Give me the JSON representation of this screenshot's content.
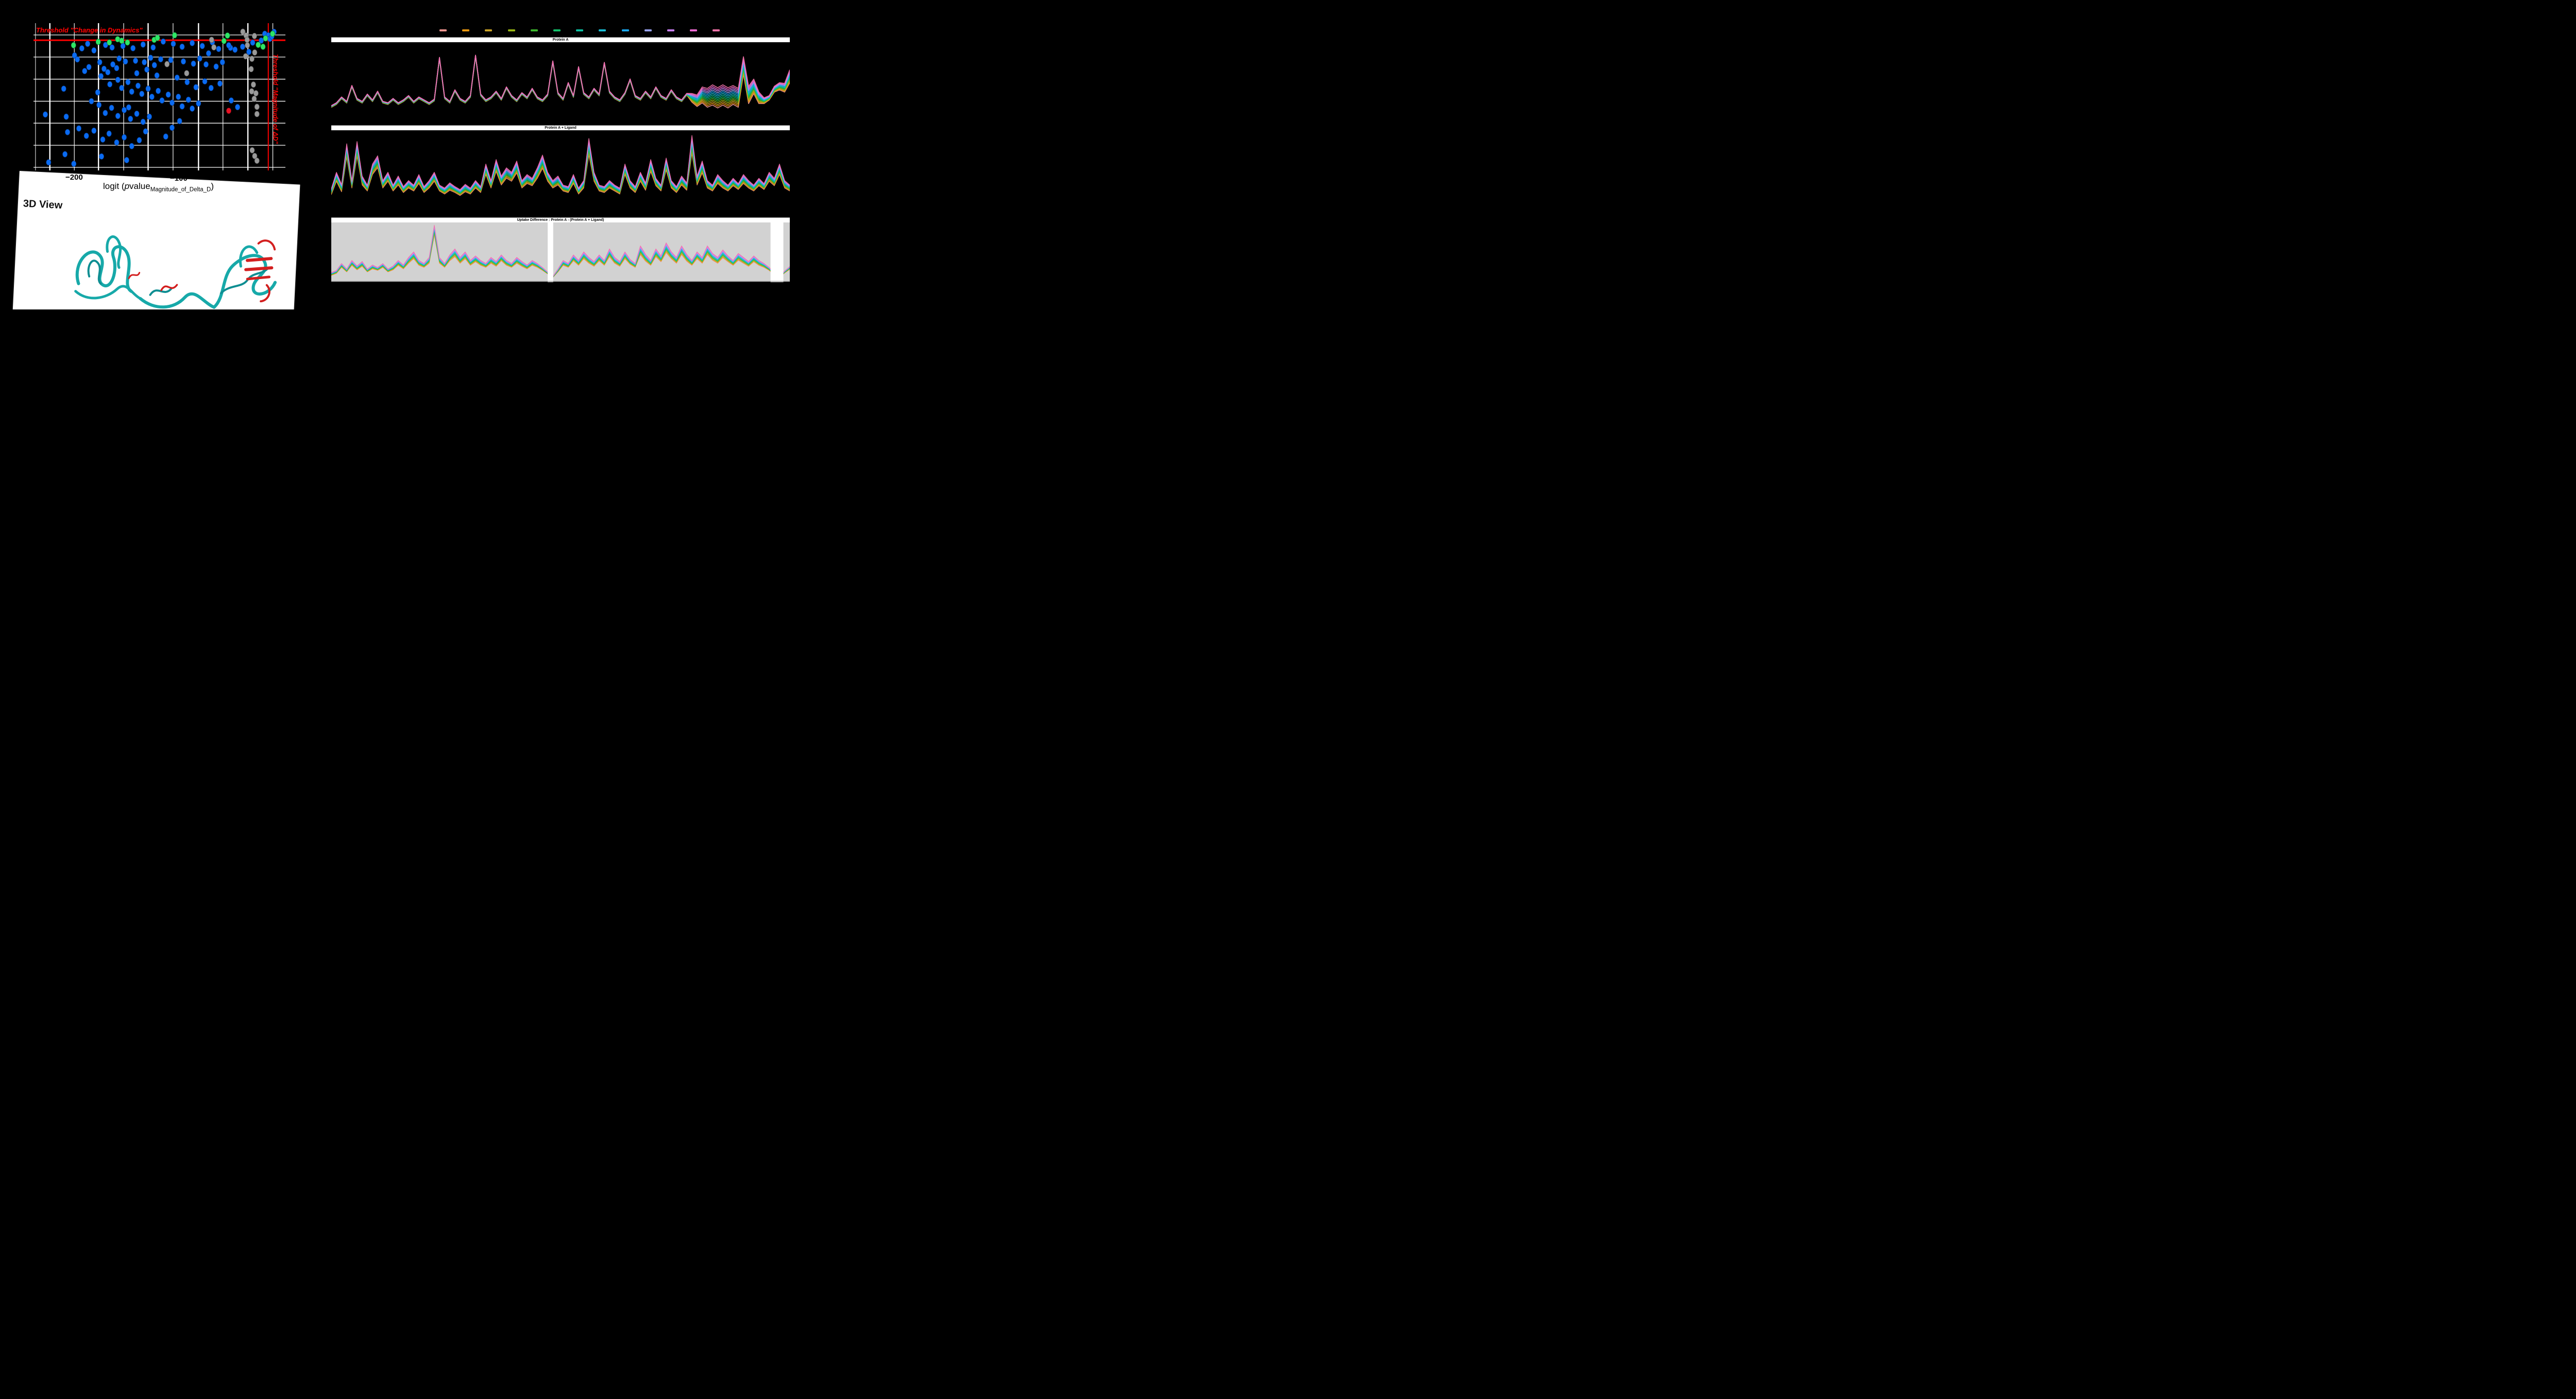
{
  "app": {
    "background": "#000000"
  },
  "volcano": {
    "threshold_h_label": "Threshold \"Change in Dynamics\"",
    "threshold_v_label": "Threshold \"Magnitude of ΔD\"",
    "threshold_color": "#ff0000",
    "tick_labels": [
      "−200",
      "−100"
    ],
    "axis_title": {
      "full": "logit (pvalue_Magnitude_of_Delta_D)",
      "prefix": "logit (",
      "p": "p",
      "mid": "value",
      "sub": "Magnitude_of_Delta_D",
      "suffix": ")"
    },
    "gridlines_v": [
      {
        "x": 0.8,
        "w": 1.0
      },
      {
        "x": 6.5,
        "w": 2.4
      },
      {
        "x": 16.2,
        "w": 1.2
      },
      {
        "x": 25.8,
        "w": 2.4
      },
      {
        "x": 35.8,
        "w": 1.2
      },
      {
        "x": 45.5,
        "w": 2.4
      },
      {
        "x": 55.4,
        "w": 1.2
      },
      {
        "x": 65.5,
        "w": 2.4
      },
      {
        "x": 75.2,
        "w": 1.2
      },
      {
        "x": 85.1,
        "w": 2.4
      },
      {
        "x": 95.0,
        "w": 1.2
      }
    ],
    "gridlines_h": [
      8.0,
      23.0,
      38.0,
      53.0,
      67.9,
      82.9,
      97.9
    ],
    "red_hline_y": 11.6,
    "red_vline_x": 93.2,
    "point_colors": {
      "blue": "#0a6bf2",
      "green": "#2ee565",
      "gray": "#9a9a9a",
      "red": "#e81123"
    }
  },
  "panel3d": {
    "title": "3D View",
    "ribbon_color": "#17a9a9",
    "highlight_color": "#d31f1f"
  },
  "legend_palette": [
    "#f0958f",
    "#e8960f",
    "#c9a227",
    "#97b414",
    "#3bb52c",
    "#12c06a",
    "#0cbfa2",
    "#19bcd4",
    "#19a7f2",
    "#97a2ef",
    "#c77ff2",
    "#ef6ad2",
    "#f472a8"
  ],
  "charts_meta": {
    "series_count": 13,
    "titles": [
      "Protein A",
      "Protein A + Ligand",
      "Uptake Difference : Protein A - (Protein A + Ligand)"
    ]
  },
  "chart_data": [
    {
      "type": "scatter",
      "title": "Volcano plot of ΔD significance",
      "xlabel": "logit (pvalue_Magnitude_of_Delta_D)",
      "x_ticks_visible": [
        "-200",
        "-100"
      ],
      "legend_position": "none",
      "grid": true,
      "points_pct": {
        "blue": [
          [
            19.2,
            17.1
          ],
          [
            16.3,
            21.9
          ],
          [
            17.4,
            24.6
          ],
          [
            26.3,
            26.5
          ],
          [
            22.0,
            29.8
          ],
          [
            20.3,
            32.5
          ],
          [
            28.0,
            31.0
          ],
          [
            29.5,
            33.3
          ],
          [
            26.8,
            36.0
          ],
          [
            31.5,
            28.0
          ],
          [
            34.0,
            24.0
          ],
          [
            33.0,
            30.5
          ],
          [
            36.5,
            26.0
          ],
          [
            40.5,
            25.5
          ],
          [
            44.0,
            26.5
          ],
          [
            46.5,
            23.5
          ],
          [
            48.0,
            28.5
          ],
          [
            50.5,
            24.5
          ],
          [
            54.5,
            25.0
          ],
          [
            59.5,
            26.0
          ],
          [
            63.5,
            27.5
          ],
          [
            66.0,
            24.0
          ],
          [
            68.5,
            28.0
          ],
          [
            72.5,
            29.5
          ],
          [
            75.0,
            26.5
          ],
          [
            78.2,
            16.7
          ],
          [
            30.3,
            41.5
          ],
          [
            33.5,
            38.5
          ],
          [
            35.0,
            44.0
          ],
          [
            37.5,
            40.0
          ],
          [
            39.0,
            46.5
          ],
          [
            41.5,
            42.5
          ],
          [
            43.0,
            48.0
          ],
          [
            45.5,
            44.5
          ],
          [
            47.0,
            50.0
          ],
          [
            49.5,
            46.0
          ],
          [
            51.0,
            52.5
          ],
          [
            53.5,
            48.5
          ],
          [
            55.0,
            54.0
          ],
          [
            57.5,
            50.0
          ],
          [
            59.0,
            56.5
          ],
          [
            61.5,
            52.0
          ],
          [
            63.0,
            58.0
          ],
          [
            65.5,
            54.5
          ],
          [
            25.5,
            47.0
          ],
          [
            23.0,
            53.0
          ],
          [
            12.0,
            44.5
          ],
          [
            4.7,
            62.0
          ],
          [
            13.0,
            63.5
          ],
          [
            26.0,
            55.5
          ],
          [
            28.5,
            61.0
          ],
          [
            31.0,
            57.5
          ],
          [
            33.5,
            63.0
          ],
          [
            36.0,
            59.0
          ],
          [
            38.5,
            65.0
          ],
          [
            41.0,
            61.5
          ],
          [
            43.5,
            67.0
          ],
          [
            46.0,
            63.5
          ],
          [
            13.5,
            74.0
          ],
          [
            18.0,
            71.5
          ],
          [
            21.0,
            76.5
          ],
          [
            24.0,
            73.0
          ],
          [
            27.5,
            79.0
          ],
          [
            30.0,
            75.0
          ],
          [
            33.0,
            81.0
          ],
          [
            36.0,
            77.5
          ],
          [
            39.0,
            83.5
          ],
          [
            42.0,
            79.5
          ],
          [
            27.0,
            90.5
          ],
          [
            12.5,
            89.0
          ],
          [
            6.0,
            94.5
          ],
          [
            16.0,
            95.5
          ],
          [
            37.0,
            93.0
          ],
          [
            52.5,
            77.0
          ],
          [
            55.0,
            71.0
          ],
          [
            44.5,
            73.5
          ],
          [
            58.0,
            66.5
          ],
          [
            81.0,
            57.0
          ],
          [
            78.5,
            52.5
          ],
          [
            37.8,
            57.2
          ],
          [
            91.8,
            7.2
          ],
          [
            93.2,
            8.3
          ],
          [
            93.8,
            10.6
          ],
          [
            94.6,
            9.0
          ],
          [
            95.5,
            5.9
          ],
          [
            90.4,
            11.8
          ],
          [
            87.0,
            13.2
          ],
          [
            51.5,
            12.5
          ],
          [
            28.6,
            14.8
          ],
          [
            31.2,
            16.5
          ],
          [
            21.5,
            14.0
          ],
          [
            24.0,
            18.5
          ],
          [
            35.5,
            15.5
          ],
          [
            39.5,
            17.0
          ],
          [
            43.5,
            14.5
          ],
          [
            47.5,
            16.5
          ],
          [
            55.5,
            14.0
          ],
          [
            59.0,
            16.0
          ],
          [
            63.0,
            13.5
          ],
          [
            67.0,
            15.5
          ],
          [
            71.0,
            13.0
          ],
          [
            73.5,
            17.5
          ],
          [
            77.5,
            15.0
          ],
          [
            80.0,
            18.0
          ],
          [
            83.0,
            16.0
          ],
          [
            85.5,
            19.5
          ],
          [
            69.5,
            20.5
          ],
          [
            61.0,
            40.0
          ],
          [
            57.0,
            37.0
          ],
          [
            49.0,
            35.5
          ],
          [
            45.0,
            31.5
          ],
          [
            41.0,
            34.0
          ],
          [
            64.5,
            43.5
          ],
          [
            68.0,
            39.5
          ],
          [
            70.5,
            44.0
          ],
          [
            74.0,
            41.0
          ]
        ],
        "green": [
          [
            15.9,
            15.0
          ],
          [
            25.7,
            12.7
          ],
          [
            30.1,
            13.1
          ],
          [
            33.4,
            10.9
          ],
          [
            35.0,
            11.9
          ],
          [
            37.3,
            13.1
          ],
          [
            47.9,
            11.3
          ],
          [
            49.2,
            10.0
          ],
          [
            56.0,
            8.2
          ],
          [
            77.0,
            8.4
          ],
          [
            75.6,
            12.1
          ],
          [
            89.2,
            14.7
          ],
          [
            91.1,
            16.0
          ],
          [
            92.1,
            10.3
          ],
          [
            94.9,
            7.2
          ]
        ],
        "gray": [
          [
            83.1,
            5.8
          ],
          [
            84.4,
            8.4
          ],
          [
            87.7,
            8.7
          ],
          [
            70.7,
            11.3
          ],
          [
            84.8,
            11.3
          ],
          [
            84.9,
            15.0
          ],
          [
            71.6,
            16.4
          ],
          [
            87.8,
            19.9
          ],
          [
            84.2,
            22.5
          ],
          [
            86.7,
            24.2
          ],
          [
            53.0,
            27.8
          ],
          [
            60.8,
            34.0
          ],
          [
            86.4,
            31.2
          ],
          [
            87.3,
            41.7
          ],
          [
            86.6,
            46.3
          ],
          [
            88.3,
            47.6
          ],
          [
            87.6,
            51.4
          ],
          [
            88.7,
            56.8
          ],
          [
            88.7,
            61.7
          ],
          [
            86.8,
            86.3
          ],
          [
            87.8,
            90.2
          ],
          [
            88.7,
            93.4
          ]
        ],
        "red": [
          [
            77.5,
            59.5
          ]
        ]
      }
    },
    {
      "type": "line",
      "title": "Protein A",
      "series_count": 13,
      "height": 158,
      "stroke": 1.7,
      "base": [
        18,
        22,
        30,
        24,
        46,
        28,
        24,
        34,
        26,
        38,
        24,
        22,
        28,
        22,
        26,
        32,
        24,
        30,
        26,
        22,
        27,
        85,
        30,
        24,
        40,
        28,
        24,
        32,
        88,
        34,
        26,
        30,
        38,
        28,
        44,
        32,
        26,
        36,
        30,
        42,
        30,
        26,
        34,
        80,
        36,
        28,
        50,
        32,
        72,
        36,
        30,
        42,
        34,
        78,
        38,
        30,
        26,
        36,
        55,
        32,
        28,
        38,
        30,
        44,
        32,
        28,
        40,
        30,
        26,
        35,
        30,
        26,
        34,
        30,
        34,
        30,
        34,
        30,
        34,
        30,
        75,
        34,
        46,
        30,
        26,
        30,
        42,
        46,
        44,
        60
      ],
      "spread": [
        1.2,
        1.2,
        1.2,
        1.2,
        1.2,
        1.2,
        1.2,
        1.2,
        1.2,
        1.2,
        1.2,
        1.2,
        1.2,
        1.2,
        1.2,
        1.2,
        1.2,
        1.2,
        1.2,
        1.2,
        1.2,
        1.2,
        1.2,
        1.2,
        1.2,
        1.2,
        1.2,
        1.2,
        1.2,
        1.2,
        1.2,
        1.2,
        1.2,
        1.2,
        1.2,
        1.2,
        1.2,
        1.2,
        1.2,
        1.2,
        1.2,
        1.2,
        1.2,
        1.2,
        1.2,
        1.2,
        1.2,
        1.2,
        1.2,
        1.2,
        1.2,
        1.2,
        1.2,
        1.2,
        1.2,
        1.2,
        1.2,
        1.2,
        1.2,
        1.2,
        1.2,
        1.2,
        1.2,
        1.2,
        1.2,
        1.2,
        1.2,
        1.2,
        1.2,
        1.2,
        6,
        8,
        11,
        13,
        14,
        14,
        14,
        14,
        13,
        13,
        12,
        12,
        10,
        8,
        4,
        3,
        4,
        5,
        6,
        9
      ],
      "gaps": []
    },
    {
      "type": "line",
      "title": "Protein A + Ligand",
      "series_count": 13,
      "height": 164,
      "stroke": 1.2,
      "base": [
        25,
        45,
        30,
        80,
        35,
        82,
        40,
        30,
        55,
        65,
        35,
        45,
        30,
        40,
        28,
        35,
        30,
        42,
        28,
        35,
        45,
        30,
        26,
        32,
        28,
        24,
        30,
        26,
        35,
        28,
        55,
        35,
        60,
        40,
        50,
        45,
        58,
        35,
        42,
        38,
        50,
        65,
        45,
        35,
        40,
        30,
        28,
        42,
        26,
        35,
        85,
        45,
        30,
        28,
        35,
        30,
        26,
        55,
        35,
        28,
        45,
        32,
        60,
        38,
        30,
        62,
        35,
        28,
        40,
        32,
        88,
        40,
        58,
        35,
        30,
        42,
        35,
        30,
        38,
        32,
        42,
        35,
        30,
        38,
        32,
        45,
        38,
        55,
        35,
        30
      ],
      "spread": [
        4,
        6,
        5,
        9,
        5,
        10,
        6,
        4,
        7,
        8,
        5,
        6,
        4,
        6,
        4,
        5,
        4,
        6,
        4,
        5,
        6,
        4,
        4,
        5,
        4,
        4,
        5,
        4,
        5,
        4,
        7,
        5,
        8,
        6,
        7,
        6,
        8,
        5,
        6,
        5,
        7,
        9,
        6,
        5,
        6,
        4,
        4,
        6,
        4,
        5,
        11,
        6,
        4,
        4,
        5,
        4,
        4,
        7,
        5,
        4,
        6,
        5,
        8,
        5,
        4,
        8,
        5,
        4,
        6,
        5,
        12,
        6,
        8,
        5,
        4,
        6,
        5,
        4,
        5,
        4,
        6,
        5,
        4,
        5,
        4,
        6,
        5,
        7,
        5,
        4
      ],
      "gaps": []
    },
    {
      "type": "line",
      "title": "Uptake Difference : Protein A - (Protein A + Ligand)",
      "series_count": 13,
      "height": 116,
      "stroke": 1.0,
      "plot_bg": "#d2d2d2",
      "base": [
        8,
        12,
        25,
        15,
        30,
        20,
        28,
        15,
        22,
        18,
        25,
        15,
        20,
        30,
        22,
        35,
        45,
        30,
        25,
        35,
        95,
        35,
        25,
        40,
        50,
        35,
        45,
        30,
        38,
        30,
        25,
        35,
        28,
        40,
        30,
        25,
        35,
        28,
        22,
        30,
        25,
        18,
        10,
        2,
        15,
        30,
        25,
        40,
        30,
        45,
        35,
        28,
        40,
        30,
        50,
        35,
        28,
        45,
        32,
        25,
        55,
        40,
        30,
        50,
        38,
        60,
        45,
        35,
        55,
        40,
        30,
        45,
        35,
        55,
        42,
        35,
        48,
        38,
        30,
        42,
        35,
        28,
        38,
        30,
        25,
        18,
        8,
        2,
        12,
        20
      ],
      "spread": [
        3,
        3,
        4,
        3,
        5,
        4,
        5,
        3,
        4,
        3,
        4,
        3,
        4,
        5,
        4,
        6,
        7,
        5,
        4,
        6,
        10,
        6,
        4,
        6,
        8,
        6,
        7,
        5,
        6,
        5,
        4,
        6,
        5,
        6,
        5,
        4,
        6,
        5,
        4,
        5,
        4,
        3,
        2,
        1,
        3,
        5,
        4,
        6,
        5,
        7,
        6,
        5,
        6,
        5,
        8,
        6,
        5,
        7,
        5,
        4,
        9,
        7,
        5,
        8,
        6,
        10,
        7,
        6,
        9,
        7,
        5,
        7,
        6,
        9,
        7,
        6,
        8,
        6,
        5,
        7,
        6,
        5,
        6,
        5,
        4,
        3,
        2,
        1,
        2,
        3
      ],
      "gaps": [
        {
          "x_pct": 47.2,
          "w_pct": 1.2
        },
        {
          "x_pct": 95.8,
          "w_pct": 2.8
        }
      ]
    }
  ]
}
